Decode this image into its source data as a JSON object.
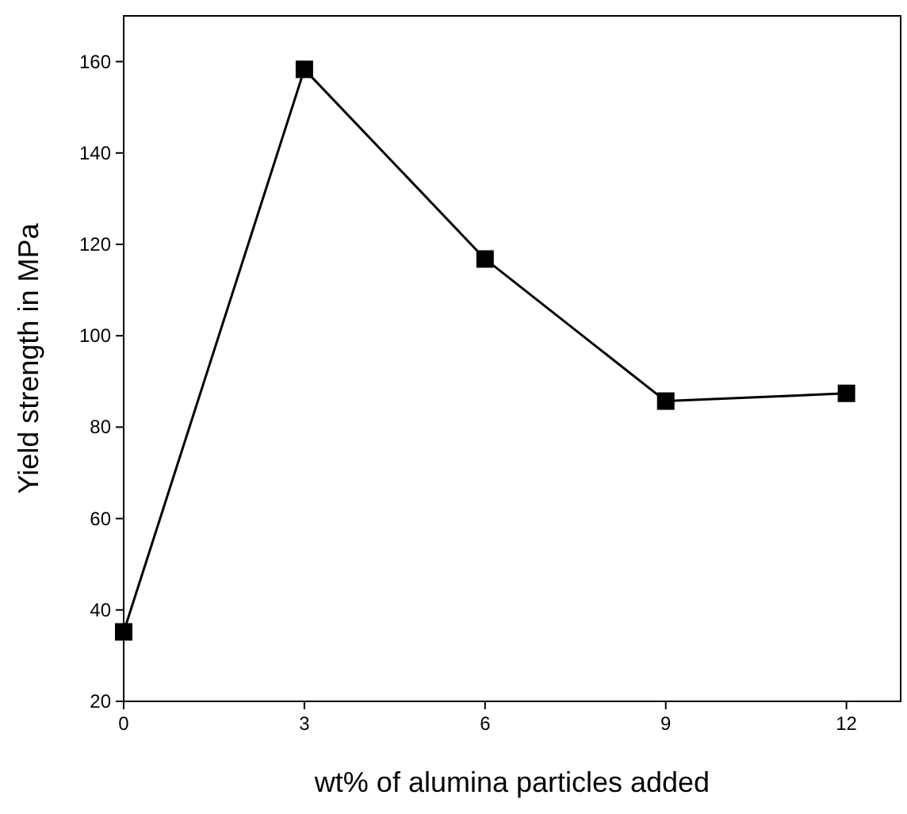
{
  "chart_data": {
    "type": "line",
    "xlabel": "wt% of alumina particles added",
    "ylabel": "Yield strength in MPa",
    "x": [
      0,
      3,
      6,
      9,
      12
    ],
    "series": [
      {
        "color": "#000000",
        "values": [
          35.2,
          158.3,
          116.8,
          85.7,
          87.4
        ]
      }
    ],
    "xlim": [
      0,
      12.9
    ],
    "xticks": [
      0,
      3,
      6,
      9,
      12
    ],
    "ylim": [
      20,
      170
    ],
    "yticks": [
      20,
      40,
      60,
      80,
      100,
      120,
      140,
      160
    ],
    "grid": false,
    "marker": "square",
    "line_style": "solid"
  }
}
